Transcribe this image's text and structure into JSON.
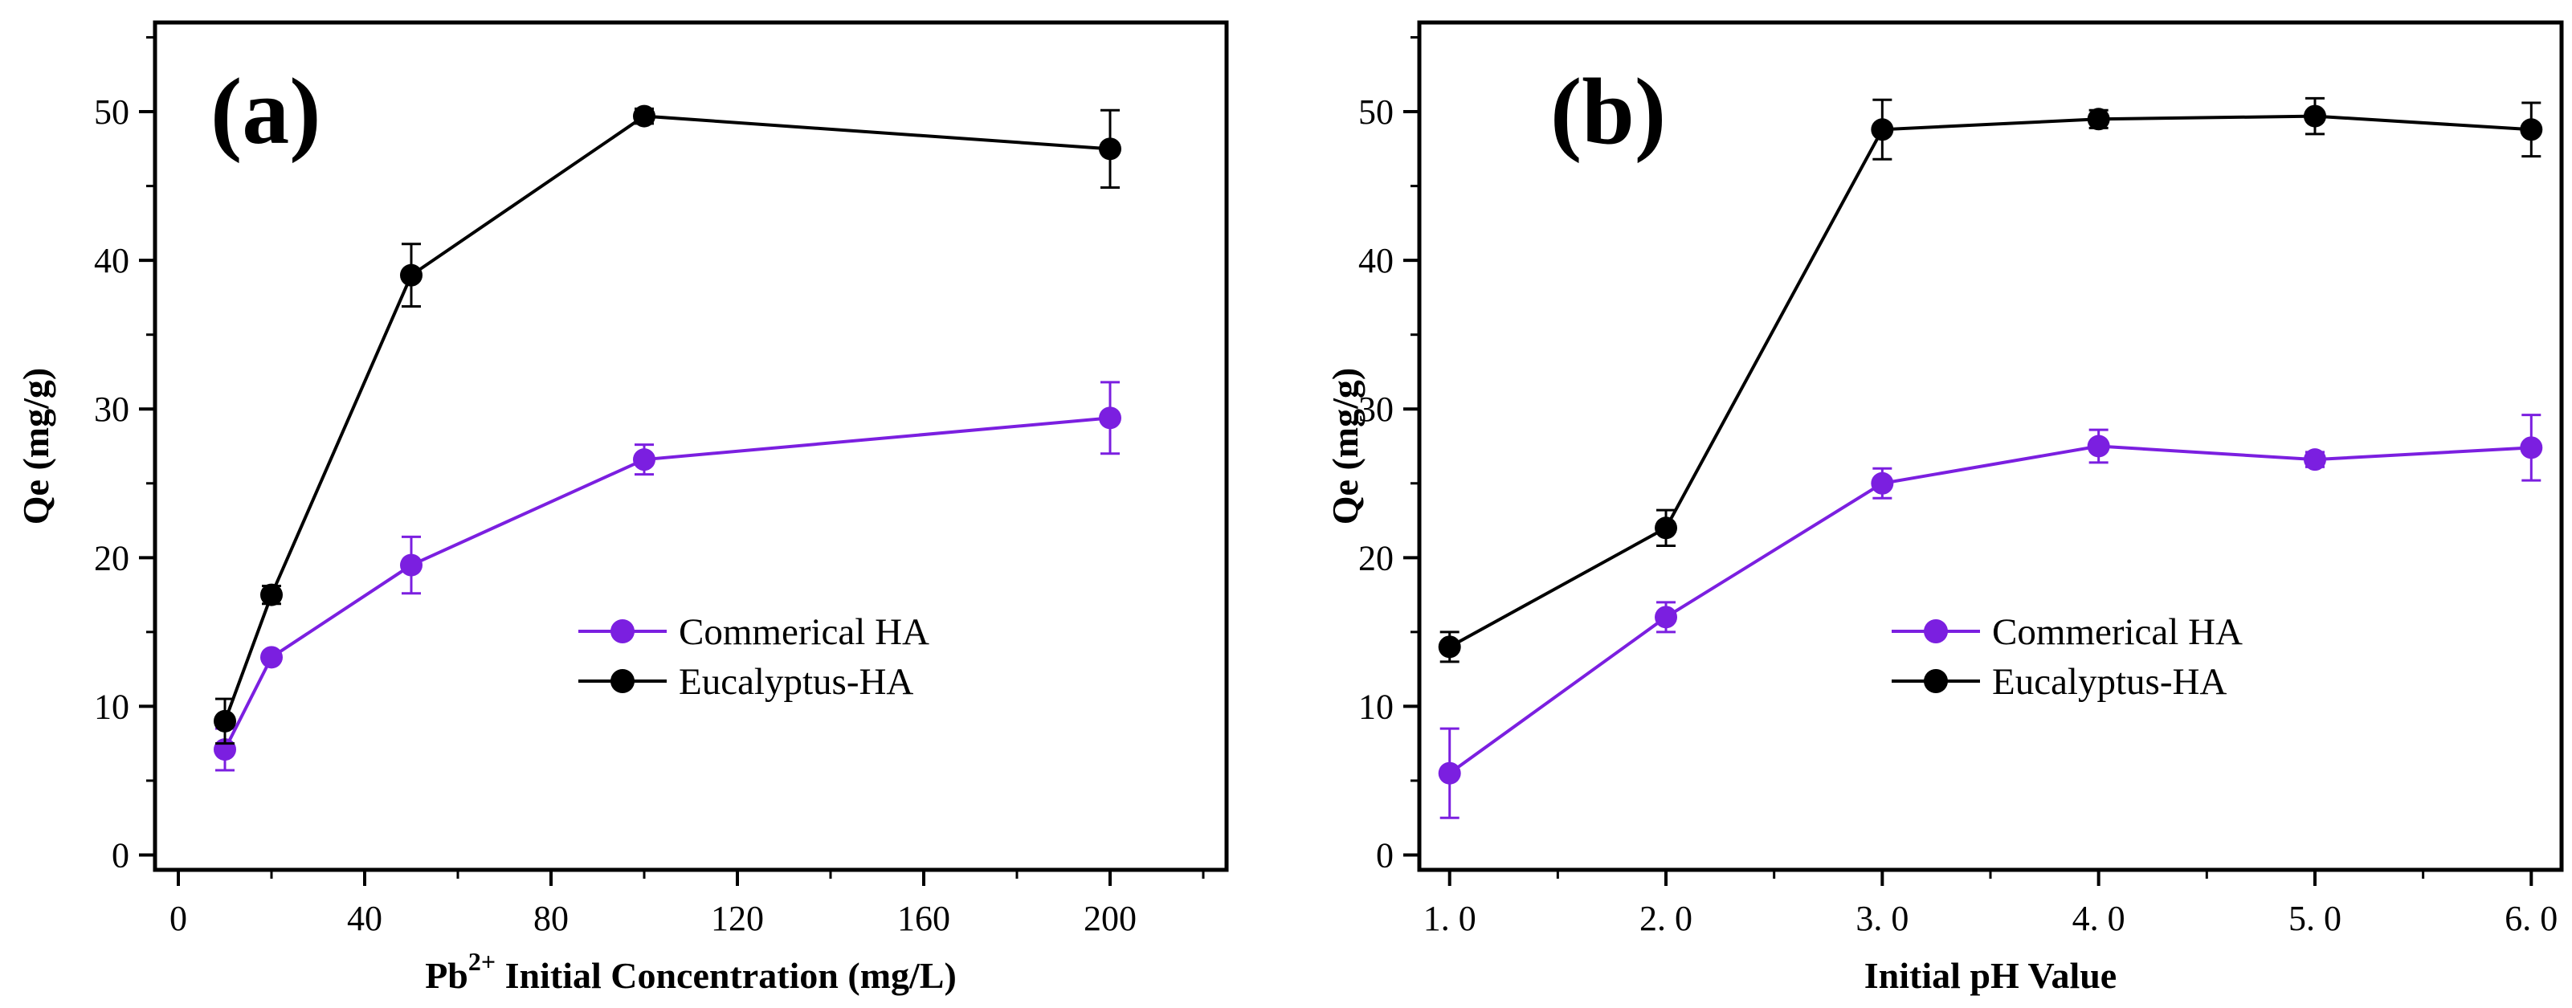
{
  "chart_data": [
    {
      "type": "line",
      "panel_label": "(a)",
      "xlabel": "Pb",
      "xlabel_sup": "2+",
      "xlabel_rest": " Initial Concentration (mg/L)",
      "ylabel": "Qe (mg/g)",
      "xlim": [
        -5,
        225
      ],
      "ylim": [
        -1,
        56
      ],
      "xticks": [
        0,
        40,
        80,
        120,
        160,
        200
      ],
      "xtick_labels": [
        "0",
        "40",
        "80",
        "120",
        "160",
        "200"
      ],
      "yticks": [
        0,
        10,
        20,
        30,
        40,
        50
      ],
      "ytick_labels": [
        "0",
        "10",
        "20",
        "30",
        "40",
        "50"
      ],
      "legend": "center-right",
      "grid": false,
      "series": [
        {
          "name": "Commerical HA",
          "color": "#7b1fe0",
          "x": [
            10,
            20,
            50,
            100,
            200
          ],
          "y": [
            7.1,
            13.3,
            19.5,
            26.6,
            29.4
          ],
          "err": [
            1.4,
            0.3,
            1.9,
            1.0,
            2.4
          ]
        },
        {
          "name": "Eucalyptus-HA",
          "color": "#000000",
          "x": [
            10,
            20,
            50,
            100,
            200
          ],
          "y": [
            9.0,
            17.5,
            39.0,
            49.7,
            47.5
          ],
          "err": [
            1.5,
            0.6,
            2.1,
            0.5,
            2.6
          ]
        }
      ]
    },
    {
      "type": "line",
      "panel_label": "(b)",
      "xlabel": "Initial pH Value",
      "ylabel": "Qe (mg/g)",
      "xlim": [
        0.86,
        6.14
      ],
      "ylim": [
        -1,
        56
      ],
      "xticks": [
        1,
        2,
        3,
        4,
        5,
        6
      ],
      "xtick_labels": [
        "1. 0",
        "2. 0",
        "3. 0",
        "4. 0",
        "5. 0",
        "6. 0"
      ],
      "yticks": [
        0,
        10,
        20,
        30,
        40,
        50
      ],
      "ytick_labels": [
        "0",
        "10",
        "20",
        "30",
        "40",
        "50"
      ],
      "legend": "center-right",
      "grid": false,
      "series": [
        {
          "name": "Commerical HA",
          "color": "#7b1fe0",
          "x": [
            1,
            2,
            3,
            4,
            5,
            6
          ],
          "y": [
            5.5,
            16.0,
            25.0,
            27.5,
            26.6,
            27.4
          ],
          "err": [
            3.0,
            1.0,
            1.0,
            1.1,
            0.5,
            2.2
          ]
        },
        {
          "name": "Eucalyptus-HA",
          "color": "#000000",
          "x": [
            1,
            2,
            3,
            4,
            5,
            6
          ],
          "y": [
            14.0,
            22.0,
            48.8,
            49.5,
            49.7,
            48.8
          ],
          "err": [
            1.0,
            1.2,
            2.0,
            0.6,
            1.2,
            1.8
          ]
        }
      ]
    }
  ]
}
